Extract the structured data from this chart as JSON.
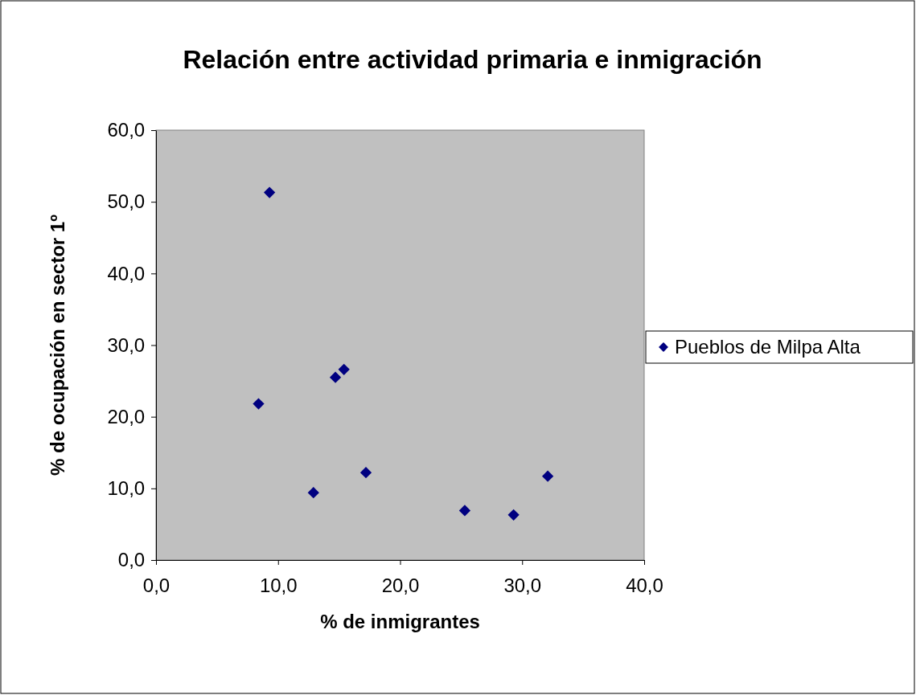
{
  "chart_data": {
    "type": "scatter",
    "title": "Relación entre actividad primaria e inmigración",
    "xlabel": "% de inmigrantes",
    "ylabel": "% de ocupación en sector 1º",
    "xlim": [
      0,
      40
    ],
    "xticks": [
      {
        "value": 0,
        "label": "0,0"
      },
      {
        "value": 10,
        "label": "10,0"
      },
      {
        "value": 20,
        "label": "20,0"
      },
      {
        "value": 30,
        "label": "30,0"
      },
      {
        "value": 40,
        "label": "40,0"
      }
    ],
    "ylim": [
      0,
      60
    ],
    "yticks": [
      {
        "value": 0,
        "label": "0,0"
      },
      {
        "value": 10,
        "label": "10,0"
      },
      {
        "value": 20,
        "label": "20,0"
      },
      {
        "value": 30,
        "label": "30,0"
      },
      {
        "value": 40,
        "label": "40,0"
      },
      {
        "value": 50,
        "label": "50,0"
      },
      {
        "value": 60,
        "label": "60,0"
      }
    ],
    "marker": "diamond",
    "legend": "right",
    "grid": false,
    "series": [
      {
        "name": "Pueblos de Milpa Alta",
        "color": "#000080",
        "x": [
          9.3,
          8.4,
          14.7,
          15.4,
          17.2,
          12.9,
          25.3,
          29.3,
          32.1
        ],
        "values": [
          51.3,
          21.8,
          25.5,
          26.6,
          12.2,
          9.4,
          6.9,
          6.3,
          11.7
        ]
      }
    ]
  }
}
